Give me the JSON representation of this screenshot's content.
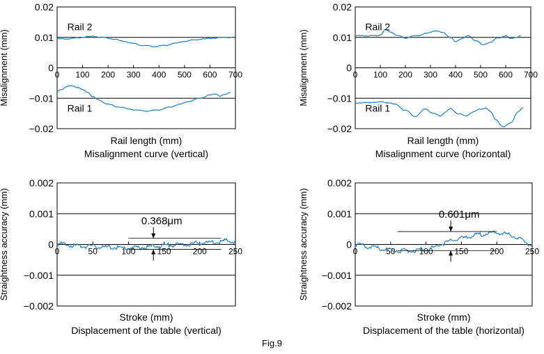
{
  "figure_caption": "Fig.9",
  "colors": {
    "curve": "#1f7fc4",
    "axis": "#000000"
  },
  "chart_data": [
    {
      "type": "line",
      "ylabel": "Misalignment (mm)",
      "xlabel": "Rail length (mm)",
      "subtitle": "Misalignment curve (vertical)",
      "xlim": [
        0,
        700
      ],
      "ylim": [
        -0.02,
        0.02
      ],
      "xticks": [
        0,
        100,
        200,
        300,
        400,
        500,
        600,
        700
      ],
      "xtick_labels": [
        "0",
        "100",
        "200",
        "300",
        "400",
        "500",
        "600",
        "700"
      ],
      "yticks": [
        0.02,
        0.01,
        0,
        -0.01,
        -0.02
      ],
      "ytick_labels": [
        "0.02",
        "0.01",
        "0",
        "−0.01",
        "−0.02"
      ],
      "reference_lines": [
        0.01,
        -0.01
      ],
      "x_axis_at": 0,
      "labels": [
        {
          "text": "Rail 2",
          "x": 40,
          "y": 0.0135
        },
        {
          "text": "Rail 1",
          "x": 40,
          "y": -0.0133
        }
      ],
      "series": [
        {
          "name": "Rail 2",
          "x": [
            0,
            40,
            80,
            110,
            140,
            180,
            220,
            260,
            300,
            340,
            380,
            420,
            460,
            500,
            540,
            580,
            620,
            660,
            690
          ],
          "y": [
            0.0095,
            0.0095,
            0.0098,
            0.0102,
            0.0103,
            0.01,
            0.0095,
            0.0088,
            0.008,
            0.0073,
            0.007,
            0.0073,
            0.008,
            0.0087,
            0.0092,
            0.0095,
            0.0098,
            0.01,
            0.01
          ]
        },
        {
          "name": "Rail 1",
          "x": [
            0,
            20,
            40,
            60,
            80,
            100,
            120,
            140,
            160,
            200,
            240,
            280,
            320,
            360,
            400,
            440,
            480,
            520,
            560,
            600,
            620,
            640,
            660,
            680
          ],
          "y": [
            -0.0075,
            -0.007,
            -0.0062,
            -0.0058,
            -0.0065,
            -0.0072,
            -0.008,
            -0.0095,
            -0.0105,
            -0.012,
            -0.0128,
            -0.0135,
            -0.014,
            -0.0142,
            -0.0138,
            -0.013,
            -0.012,
            -0.011,
            -0.01,
            -0.009,
            -0.0085,
            -0.0092,
            -0.0088,
            -0.008
          ]
        }
      ]
    },
    {
      "type": "line",
      "ylabel": "Misalignment (mm)",
      "xlabel": "Rail length (mm)",
      "subtitle": "Misalignment curve (horizontal)",
      "xlim": [
        0,
        700
      ],
      "ylim": [
        -0.02,
        0.02
      ],
      "xticks": [
        0,
        100,
        200,
        300,
        400,
        500,
        600,
        700
      ],
      "xtick_labels": [
        "0",
        "100",
        "200",
        "300",
        "400",
        "500",
        "600",
        "700"
      ],
      "yticks": [
        0.02,
        0.01,
        0,
        -0.01,
        -0.02
      ],
      "ytick_labels": [
        "0.02",
        "0.01",
        "0",
        "−0.01",
        "−0.02"
      ],
      "reference_lines": [
        0.01,
        -0.01
      ],
      "x_axis_at": 0,
      "labels": [
        {
          "text": "Rail 2",
          "x": 40,
          "y": 0.0135
        },
        {
          "text": "Rail 1",
          "x": 40,
          "y": -0.0133
        }
      ],
      "series": [
        {
          "name": "Rail 2",
          "x": [
            0,
            40,
            80,
            100,
            120,
            140,
            170,
            200,
            240,
            280,
            320,
            350,
            380,
            400,
            420,
            450,
            480,
            510,
            540,
            570,
            600,
            620,
            640,
            660
          ],
          "y": [
            0.0105,
            0.0105,
            0.0105,
            0.0108,
            0.0125,
            0.0118,
            0.0106,
            0.0098,
            0.0105,
            0.0112,
            0.0122,
            0.0115,
            0.01,
            0.0085,
            0.0095,
            0.0105,
            0.009,
            0.0075,
            0.0085,
            0.0098,
            0.0105,
            0.0095,
            0.01,
            0.0105
          ]
        },
        {
          "name": "Rail 1",
          "x": [
            0,
            40,
            80,
            110,
            130,
            160,
            200,
            240,
            280,
            310,
            340,
            360,
            380,
            410,
            440,
            470,
            500,
            520,
            540,
            560,
            590,
            620,
            650,
            670
          ],
          "y": [
            -0.0115,
            -0.0115,
            -0.0113,
            -0.0112,
            -0.0115,
            -0.012,
            -0.014,
            -0.016,
            -0.0135,
            -0.015,
            -0.0158,
            -0.0145,
            -0.0135,
            -0.015,
            -0.0158,
            -0.0145,
            -0.0135,
            -0.0132,
            -0.0145,
            -0.017,
            -0.0195,
            -0.018,
            -0.0145,
            -0.013
          ]
        }
      ]
    },
    {
      "type": "line",
      "ylabel": "Straightness accuracy (mm)",
      "xlabel": "Stroke (mm)",
      "subtitle": "Displacement of the table (vertical)",
      "xlim": [
        0,
        250
      ],
      "ylim": [
        -0.002,
        0.002
      ],
      "xticks": [
        0,
        50,
        100,
        150,
        200,
        250
      ],
      "xtick_labels": [
        "0",
        "50",
        "100",
        "150",
        "200",
        "250"
      ],
      "yticks": [
        0.002,
        0.001,
        0,
        -0.001,
        -0.002
      ],
      "ytick_labels": [
        "0.002",
        "0.001",
        "0",
        "−0.001",
        "−0.002"
      ],
      "reference_lines": [
        0.001,
        -0.001
      ],
      "x_axis_at": 0,
      "annotation": {
        "text": "0.368μm",
        "x": 135,
        "upper": 0.0002,
        "lower": -0.00016,
        "line_x0": 100,
        "line_x1": 230
      },
      "series": [
        {
          "name": "",
          "x": [
            0,
            20,
            40,
            60,
            80,
            100,
            120,
            140,
            160,
            180,
            200,
            220,
            240,
            250
          ],
          "y": [
            2e-05,
            -3e-05,
            -6e-05,
            -8e-05,
            -0.0001,
            -0.00012,
            -0.0001,
            -5e-05,
            -2e-05,
            0.0,
            4e-05,
            8e-05,
            0.00012,
            0.0001
          ]
        }
      ]
    },
    {
      "type": "line",
      "ylabel": "Straightness accuracy (mm)",
      "xlabel": "Stroke (mm)",
      "subtitle": "Displacement of the table (horizontal)",
      "xlim": [
        0,
        250
      ],
      "ylim": [
        -0.002,
        0.002
      ],
      "xticks": [
        0,
        50,
        100,
        150,
        200,
        250
      ],
      "xtick_labels": [
        "0",
        "50",
        "100",
        "150",
        "200",
        "250"
      ],
      "yticks": [
        0.002,
        0.001,
        0,
        -0.001,
        -0.002
      ],
      "ytick_labels": [
        "0.002",
        "0.001",
        "0",
        "−0.001",
        "−0.002"
      ],
      "reference_lines": [
        0.001,
        -0.001
      ],
      "x_axis_at": 0,
      "annotation": {
        "text": "0.601μm",
        "x": 135,
        "upper": 0.00042,
        "lower": -0.0002,
        "line_x0": 60,
        "line_x1": 200
      },
      "series": [
        {
          "name": "",
          "x": [
            0,
            20,
            40,
            60,
            80,
            100,
            110,
            120,
            130,
            140,
            150,
            160,
            170,
            180,
            190,
            200,
            210,
            220,
            230,
            240,
            250
          ],
          "y": [
            0.0,
            -8e-05,
            -0.00015,
            -0.0002,
            -0.0002,
            -0.00015,
            -0.0001,
            0.0,
            8e-05,
            0.00015,
            0.0002,
            0.00025,
            0.0003,
            0.00033,
            0.00036,
            0.00038,
            0.00035,
            0.0003,
            0.0002,
            8e-05,
            -5e-05
          ]
        }
      ]
    }
  ]
}
